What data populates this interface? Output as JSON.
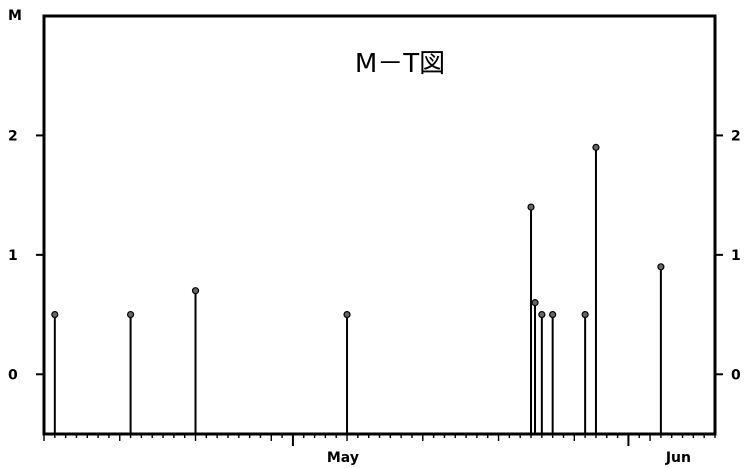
{
  "chart_data": {
    "type": "stem",
    "title": "M－T図",
    "ylabel": "M",
    "xlabel": "",
    "ylim": [
      -0.5,
      3.0
    ],
    "xlim": [
      "2020-04-08",
      "2020-06-09"
    ],
    "yticks": [
      {
        "value": 0,
        "label": "0"
      },
      {
        "value": 1,
        "label": "1"
      },
      {
        "value": 2,
        "label": "2"
      }
    ],
    "right_yticks": [
      {
        "value": 0,
        "label": "0"
      },
      {
        "value": 1,
        "label": "1"
      },
      {
        "value": 2,
        "label": "2"
      }
    ],
    "xticks": [
      {
        "value": "2020-05-01",
        "label": "May"
      },
      {
        "value": "2020-06-01",
        "label": "Jun"
      }
    ],
    "series": [
      {
        "points": [
          {
            "x": "2020-04-09",
            "y": 0.5
          },
          {
            "x": "2020-04-16",
            "y": 0.5
          },
          {
            "x": "2020-04-22",
            "y": 0.7
          },
          {
            "x": "2020-05-06",
            "y": 0.5
          },
          {
            "x": "2020-05-23",
            "y": 1.4
          },
          {
            "x": "2020-05-23",
            "y": 0.6
          },
          {
            "x": "2020-05-24",
            "y": 0.5
          },
          {
            "x": "2020-05-25",
            "y": 0.5
          },
          {
            "x": "2020-05-28",
            "y": 0.5
          },
          {
            "x": "2020-05-29",
            "y": 1.9
          },
          {
            "x": "2020-06-04",
            "y": 0.9
          }
        ]
      }
    ]
  }
}
